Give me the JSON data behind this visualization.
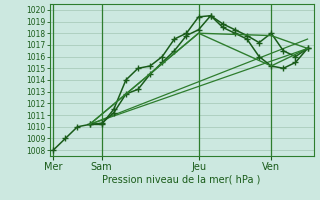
{
  "bg_color": "#cce8e0",
  "grid_color": "#b0d8cc",
  "line_color_dark": "#1a5c1a",
  "line_color_mid": "#2e7d2e",
  "ylabel_text": "Pression niveau de la mer( hPa )",
  "ylim": [
    1007.5,
    1020.5
  ],
  "yticks": [
    1008,
    1009,
    1010,
    1011,
    1012,
    1013,
    1014,
    1015,
    1016,
    1017,
    1018,
    1019,
    1020
  ],
  "day_labels": [
    "Mer",
    "Sam",
    "Jeu",
    "Ven"
  ],
  "day_positions": [
    0,
    4,
    12,
    18
  ],
  "x_total_min": -0.3,
  "x_total_max": 21.5,
  "lines": [
    {
      "x": [
        0,
        1,
        2,
        3,
        4,
        5,
        6,
        7,
        8,
        9,
        10,
        11,
        12,
        13,
        14,
        15,
        16,
        17,
        18,
        19,
        20,
        21
      ],
      "y": [
        1008,
        1009.0,
        1010.0,
        1010.2,
        1010.2,
        1011.5,
        1014.0,
        1015.0,
        1015.2,
        1016.0,
        1017.5,
        1018.0,
        1019.4,
        1019.5,
        1018.5,
        1018.0,
        1017.5,
        1016.0,
        1015.2,
        1015.0,
        1015.5,
        1016.7
      ],
      "color": "#1a5c1a",
      "lw": 1.1,
      "marker": "+"
    },
    {
      "x": [
        3,
        4,
        5,
        6,
        7,
        8,
        9,
        10,
        11,
        12,
        13,
        14,
        15,
        16,
        17,
        18,
        19,
        20,
        21
      ],
      "y": [
        1010.2,
        1010.3,
        1011.2,
        1012.8,
        1013.2,
        1014.5,
        1015.5,
        1016.5,
        1017.8,
        1018.3,
        1019.5,
        1018.8,
        1018.3,
        1017.8,
        1017.2,
        1018.0,
        1016.5,
        1016.0,
        1016.7
      ],
      "color": "#1a5c1a",
      "lw": 1.1,
      "marker": "+"
    },
    {
      "x": [
        3,
        12,
        18,
        21
      ],
      "y": [
        1010.2,
        1018.0,
        1017.8,
        1016.7
      ],
      "color": "#2e7d2e",
      "lw": 1.0,
      "marker": null
    },
    {
      "x": [
        3,
        12,
        18,
        21
      ],
      "y": [
        1010.2,
        1018.0,
        1015.2,
        1016.7
      ],
      "color": "#2e7d2e",
      "lw": 1.0,
      "marker": null
    }
  ]
}
